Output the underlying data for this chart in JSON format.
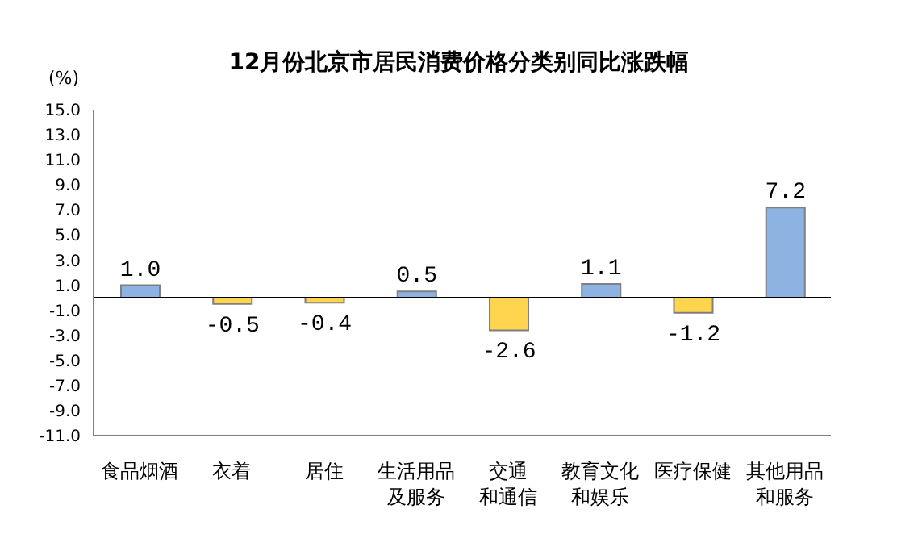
{
  "chart_data": {
    "type": "bar",
    "title": "12月份北京市居民消费价格分类别同比涨跌幅",
    "ylabel": "(%)",
    "categories": [
      "食品烟酒",
      "衣着",
      "居住",
      "生活用品及服务",
      "交通和通信",
      "教育文化和娱乐",
      "医疗保健",
      "其他用品和服务"
    ],
    "values": [
      1.0,
      -0.5,
      -0.4,
      0.5,
      -2.6,
      1.1,
      -1.2,
      7.2
    ],
    "colors": [
      "#8db3e2",
      "#ffd54f",
      "#ffd54f",
      "#8db3e2",
      "#ffd54f",
      "#8db3e2",
      "#ffd54f",
      "#8db3e2"
    ],
    "ylim": [
      -11,
      15
    ],
    "yticks": [
      {
        "value": -11,
        "label": "-11.0"
      },
      {
        "value": -9,
        "label": "-9.0"
      },
      {
        "value": -7,
        "label": "-7.0"
      },
      {
        "value": -5,
        "label": "-5.0"
      },
      {
        "value": -3,
        "label": "-3.0"
      },
      {
        "value": -1,
        "label": "-1.0"
      },
      {
        "value": 1,
        "label": "1.0"
      },
      {
        "value": 3,
        "label": "3.0"
      },
      {
        "value": 5,
        "label": "5.0"
      },
      {
        "value": 7,
        "label": "7.0"
      },
      {
        "value": 9,
        "label": "9.0"
      },
      {
        "value": 11,
        "label": "11.0"
      },
      {
        "value": 13,
        "label": "13.0"
      },
      {
        "value": 15,
        "label": "15.0"
      }
    ],
    "value_labels": [
      "1.0",
      "-0.5",
      "-0.4",
      "0.5",
      "-2.6",
      "1.1",
      "-1.2",
      "7.2"
    ]
  }
}
